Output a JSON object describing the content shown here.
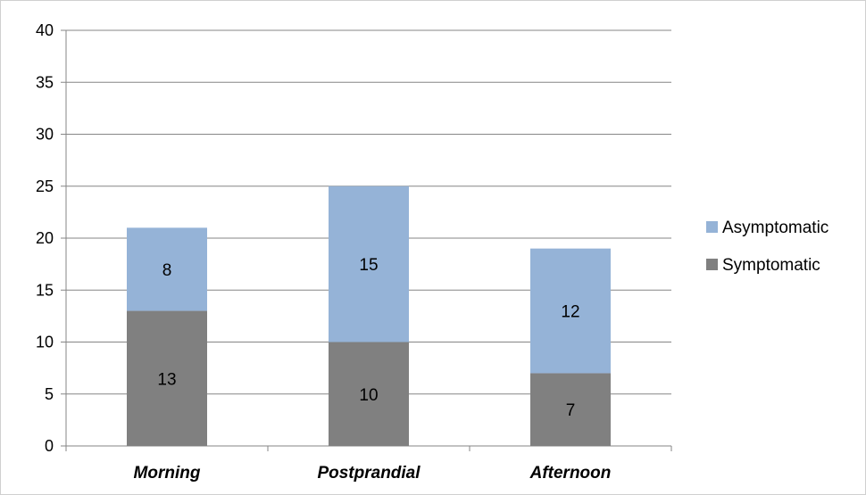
{
  "chart_data": {
    "type": "bar",
    "stacked": true,
    "categories": [
      "Morning",
      "Postprandial",
      "Afternoon"
    ],
    "series": [
      {
        "name": "Symptomatic",
        "values": [
          13,
          10,
          7
        ],
        "color": "#808080"
      },
      {
        "name": "Asymptomatic",
        "values": [
          8,
          15,
          12
        ],
        "color": "#95b3d7"
      }
    ],
    "ylim": [
      0,
      40
    ],
    "yticks": [
      0,
      5,
      10,
      15,
      20,
      25,
      30,
      35,
      40
    ],
    "title": "",
    "xlabel": "",
    "ylabel": "",
    "grid": true,
    "legend_position": "right",
    "legend_order": [
      "Asymptomatic",
      "Symptomatic"
    ]
  }
}
